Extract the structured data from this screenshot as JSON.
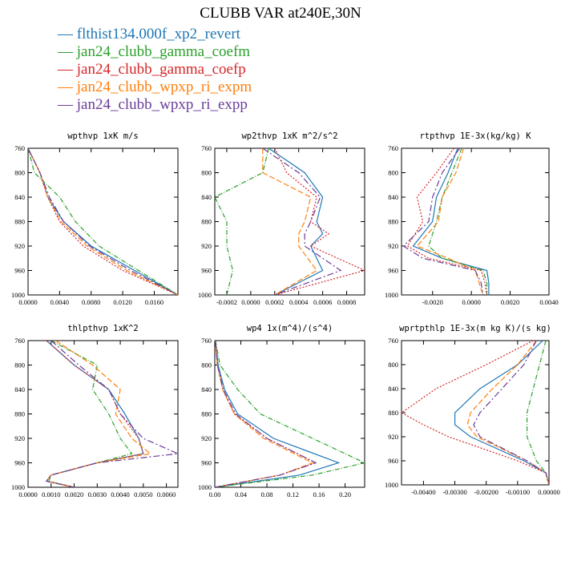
{
  "title": "CLUBB VAR at240E,30N",
  "legend": [
    {
      "name": "flthist134.000f_xp2_revert",
      "color": "#1f77b4",
      "dash": "none"
    },
    {
      "name": "jan24_clubb_gamma_coefm",
      "color": "#2ca02c",
      "dash": "6,2,1,2"
    },
    {
      "name": "jan24_clubb_gamma_coefp",
      "color": "#d62728",
      "dash": "2,2"
    },
    {
      "name": "jan24_clubb_wpxp_ri_expm",
      "color": "#ff7f0e",
      "dash": "7,3"
    },
    {
      "name": "jan24_clubb_wpxp_ri_expp",
      "color": "#6a3d9a",
      "dash": "8,3,2,3"
    }
  ],
  "chart_data": [
    {
      "type": "line",
      "title": "wpthvp  1xK m/s",
      "ylim": [
        760,
        1000
      ],
      "yticks": [
        "760",
        "800",
        "840",
        "880",
        "920",
        "960",
        "1000"
      ],
      "xlim": [
        0,
        0.019
      ],
      "xticks": [
        0,
        0.004,
        0.008,
        0.012,
        0.016
      ],
      "xticklabels": [
        "0.0000",
        "0.0040",
        "0.0080",
        "0.0120",
        "0.0160"
      ],
      "y": [
        760,
        800,
        840,
        880,
        920,
        960,
        1000
      ],
      "series": [
        {
          "values": [
            0.0,
            0.0015,
            0.0025,
            0.0045,
            0.008,
            0.0135,
            0.019
          ]
        },
        {
          "values": [
            0.0,
            0.0008,
            0.004,
            0.006,
            0.009,
            0.014,
            0.019
          ]
        },
        {
          "values": [
            0.0,
            0.0015,
            0.0025,
            0.004,
            0.007,
            0.012,
            0.019
          ]
        },
        {
          "values": [
            0.0,
            0.0015,
            0.0025,
            0.0042,
            0.0075,
            0.0125,
            0.019
          ]
        },
        {
          "values": [
            0.0,
            0.0015,
            0.0027,
            0.0045,
            0.0078,
            0.013,
            0.019
          ]
        }
      ]
    },
    {
      "type": "line",
      "title": "wp2thvp  1xK m^2/s^2",
      "ylim": [
        760,
        1000
      ],
      "yticks": [
        "760",
        "800",
        "840",
        "880",
        "920",
        "960",
        "1000"
      ],
      "xlim": [
        -0.0003,
        0.00095
      ],
      "xticks": [
        -0.0002,
        0.0,
        0.0002,
        0.0004,
        0.0006,
        0.0008
      ],
      "xticklabels": [
        "-0.0002",
        "0.0000",
        "0.0002",
        "0.0004",
        "0.0006",
        "0.0008"
      ],
      "y": [
        760,
        800,
        840,
        880,
        900,
        920,
        960,
        1000
      ],
      "series": [
        {
          "values": [
            0.00015,
            0.00045,
            0.0006,
            0.00055,
            0.0006,
            0.0005,
            0.0006,
            0.0002
          ]
        },
        {
          "values": [
            0.00015,
            0.0001,
            -0.0003,
            -0.0002,
            -0.0002,
            -0.0002,
            -0.00015,
            -0.0002
          ]
        },
        {
          "values": [
            0.0002,
            0.0003,
            0.00055,
            0.0005,
            0.00065,
            0.0005,
            0.00095,
            0.0002
          ]
        },
        {
          "values": [
            0.0001,
            0.0001,
            0.0005,
            0.00045,
            0.0004,
            0.0004,
            0.00055,
            0.0002
          ]
        },
        {
          "values": [
            0.0001,
            0.0004,
            0.00058,
            0.0005,
            0.00045,
            0.00045,
            0.00075,
            0.0002
          ]
        }
      ]
    },
    {
      "type": "line",
      "title": "rtpthvp  1E-3x(kg/kg) K",
      "ylim": [
        760,
        1000
      ],
      "yticks": [
        "760",
        "800",
        "840",
        "880",
        "920",
        "960",
        "1000"
      ],
      "xlim": [
        -0.0036,
        0.004
      ],
      "xticks": [
        -0.002,
        0.0,
        0.002,
        0.004
      ],
      "xticklabels": [
        "-0.0020",
        "0.0000",
        "0.0020",
        "0.0040"
      ],
      "y": [
        760,
        800,
        840,
        880,
        920,
        940,
        960,
        980,
        1000
      ],
      "series": [
        {
          "values": [
            -0.0007,
            -0.0012,
            -0.0018,
            -0.002,
            -0.003,
            -0.0015,
            0.0008,
            0.0009,
            0.0009
          ]
        },
        {
          "values": [
            -0.0005,
            -0.001,
            -0.0015,
            -0.0018,
            -0.0022,
            -0.0015,
            0.0006,
            0.0008,
            0.0008
          ]
        },
        {
          "values": [
            -0.0009,
            -0.0018,
            -0.0028,
            -0.0025,
            -0.0033,
            -0.0022,
            0.0005,
            0.0007,
            0.0008
          ]
        },
        {
          "values": [
            -0.0004,
            -0.0008,
            -0.0015,
            -0.0017,
            -0.0028,
            -0.0012,
            0.0002,
            0.0004,
            0.0006
          ]
        },
        {
          "values": [
            -0.0006,
            -0.0015,
            -0.002,
            -0.0022,
            -0.0035,
            -0.0025,
            0.0002,
            0.0005,
            0.0006
          ]
        }
      ]
    },
    {
      "type": "line",
      "title": "thlpthvp  1xK^2",
      "ylim": [
        760,
        1000
      ],
      "yticks": [
        "760",
        "800",
        "840",
        "880",
        "920",
        "960",
        "1000"
      ],
      "xlim": [
        0,
        0.0065
      ],
      "xticks": [
        0,
        0.001,
        0.002,
        0.003,
        0.004,
        0.005,
        0.006
      ],
      "xticklabels": [
        "0.0000",
        "0.0010",
        "0.0020",
        "0.0030",
        "0.0040",
        "0.0050",
        "0.0060"
      ],
      "y": [
        760,
        800,
        840,
        880,
        920,
        945,
        960,
        980,
        990,
        1000
      ],
      "series": [
        {
          "values": [
            0.0008,
            0.002,
            0.0035,
            0.0042,
            0.0048,
            0.005,
            0.003,
            0.001,
            0.0008,
            0.002
          ]
        },
        {
          "values": [
            0.001,
            0.003,
            0.0028,
            0.0035,
            0.004,
            0.0045,
            0.003,
            0.001,
            0.0009,
            0.002
          ]
        },
        {
          "values": [
            0.0008,
            0.002,
            0.0035,
            0.004,
            0.0048,
            0.005,
            0.003,
            0.001,
            0.0008,
            0.002
          ]
        },
        {
          "values": [
            0.0012,
            0.0028,
            0.004,
            0.0038,
            0.0045,
            0.0053,
            0.003,
            0.001,
            0.0008,
            0.002
          ]
        },
        {
          "values": [
            0.001,
            0.0022,
            0.0035,
            0.004,
            0.005,
            0.0065,
            0.003,
            0.001,
            0.0008,
            0.002
          ]
        }
      ]
    },
    {
      "type": "line",
      "title": "wp4  1x(m^4)/(s^4)",
      "ylim": [
        760,
        1000
      ],
      "yticks": [
        "760",
        "800",
        "840",
        "880",
        "920",
        "960",
        "1000"
      ],
      "xlim": [
        0,
        0.23
      ],
      "xticks": [
        0,
        0.04,
        0.08,
        0.12,
        0.16,
        0.2
      ],
      "xticklabels": [
        "0.00",
        "0.04",
        "0.08",
        "0.12",
        "0.16",
        "0.20"
      ],
      "y": [
        760,
        800,
        840,
        880,
        920,
        960,
        980,
        1000
      ],
      "series": [
        {
          "values": [
            0.001,
            0.005,
            0.015,
            0.035,
            0.09,
            0.19,
            0.13,
            0.0
          ]
        },
        {
          "values": [
            0.001,
            0.008,
            0.035,
            0.07,
            0.15,
            0.23,
            0.15,
            0.0
          ]
        },
        {
          "values": [
            0.001,
            0.004,
            0.012,
            0.03,
            0.08,
            0.155,
            0.1,
            0.0
          ]
        },
        {
          "values": [
            0.001,
            0.004,
            0.012,
            0.03,
            0.075,
            0.15,
            0.1,
            0.0
          ]
        },
        {
          "values": [
            0.001,
            0.004,
            0.013,
            0.032,
            0.08,
            0.155,
            0.1,
            0.0
          ]
        }
      ]
    },
    {
      "type": "line",
      "title": "wprtpthlp  1E-3x(m kg K)/(s kg)",
      "ylim": [
        760,
        1000
      ],
      "yticks": [
        "760",
        "800",
        "840",
        "880",
        "920",
        "960",
        "1000"
      ],
      "xlim": [
        -0.0047,
        0.0
      ],
      "xticks": [
        -0.004,
        -0.003,
        -0.002,
        -0.001,
        0.0
      ],
      "xticklabels": [
        "-0.00400",
        "-0.00300",
        "-0.00200",
        "-0.00100",
        "0.00000"
      ],
      "y": [
        760,
        800,
        840,
        880,
        900,
        920,
        960,
        980,
        1000
      ],
      "series": [
        {
          "values": [
            -0.0002,
            -0.001,
            -0.0022,
            -0.003,
            -0.003,
            -0.0025,
            -0.0008,
            -0.0001,
            0.0
          ]
        },
        {
          "values": [
            -0.0001,
            -0.0003,
            -0.0005,
            -0.0007,
            -0.0007,
            -0.0007,
            -0.0004,
            -0.0001,
            0.0
          ]
        },
        {
          "values": [
            -0.0005,
            -0.002,
            -0.0036,
            -0.0047,
            -0.004,
            -0.0032,
            -0.001,
            -0.0001,
            0.0
          ]
        },
        {
          "values": [
            -0.0004,
            -0.001,
            -0.0018,
            -0.0025,
            -0.0026,
            -0.0023,
            -0.0007,
            -0.0001,
            0.0
          ]
        },
        {
          "values": [
            -0.0004,
            -0.0008,
            -0.0015,
            -0.0022,
            -0.0024,
            -0.0022,
            -0.0007,
            -0.0001,
            0.0
          ]
        }
      ]
    }
  ]
}
